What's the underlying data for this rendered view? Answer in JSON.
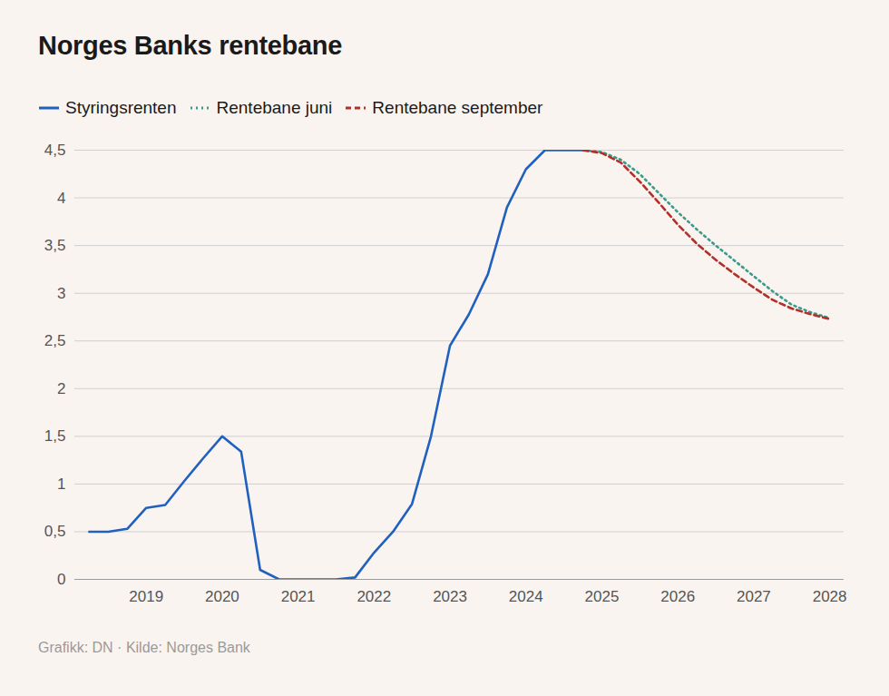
{
  "chart_data": {
    "type": "line",
    "title": "Norges Banks rentebane",
    "caption": "Grafikk: DN · Kilde: Norges Bank",
    "legend": "top-left",
    "grid": true,
    "x": [
      2018.25,
      2018.5,
      2018.75,
      2019,
      2019.25,
      2019.5,
      2019.75,
      2020,
      2020.25,
      2020.5,
      2020.75,
      2021,
      2021.25,
      2021.5,
      2021.75,
      2022,
      2022.25,
      2022.5,
      2022.75,
      2023,
      2023.25,
      2023.5,
      2023.75,
      2024,
      2024.25,
      2024.5,
      2024.75,
      2025,
      2025.25,
      2025.5,
      2025.75,
      2026,
      2026.25,
      2026.5,
      2026.75,
      2027,
      2027.25,
      2027.5,
      2027.75,
      2028
    ],
    "xlim": [
      2018.06,
      2028.19
    ],
    "xticks": [
      2019,
      2020,
      2021,
      2022,
      2023,
      2024,
      2025,
      2026,
      2027,
      2028
    ],
    "ylim": [
      0,
      4.5
    ],
    "yticks": [
      0,
      {
        "value": 0.5,
        "label": "0,5"
      },
      1,
      {
        "value": 1.5,
        "label": "1,5"
      },
      2,
      {
        "value": 2.5,
        "label": "2,5"
      },
      3,
      {
        "value": 3.5,
        "label": "3,5"
      },
      4,
      {
        "value": 4.5,
        "label": "4,5"
      }
    ],
    "series": [
      {
        "name": "Styringsrenten",
        "color": "#2060bf",
        "line_style": "solid",
        "values": [
          0.5,
          0.5,
          0.53,
          0.75,
          0.78,
          1.03,
          1.27,
          1.5,
          1.34,
          0.1,
          0,
          0,
          0,
          0,
          0.02,
          0.28,
          0.5,
          0.79,
          1.5,
          2.45,
          2.78,
          3.2,
          3.9,
          4.3,
          4.5,
          4.5,
          4.5,
          null,
          null,
          null,
          null,
          null,
          null,
          null,
          null,
          null,
          null,
          null,
          null,
          null
        ]
      },
      {
        "name": "Rentebane juni",
        "color": "#3a9a8c",
        "line_style": "dotted",
        "values": [
          null,
          null,
          null,
          null,
          null,
          null,
          null,
          null,
          null,
          null,
          null,
          null,
          null,
          null,
          null,
          null,
          null,
          null,
          null,
          null,
          null,
          null,
          null,
          null,
          null,
          null,
          4.5,
          4.48,
          4.4,
          4.25,
          4.05,
          3.85,
          3.67,
          3.5,
          3.34,
          3.18,
          3.02,
          2.88,
          2.8,
          2.74
        ]
      },
      {
        "name": "Rentebane september",
        "color": "#b3302a",
        "line_style": "dashed",
        "values": [
          null,
          null,
          null,
          null,
          null,
          null,
          null,
          null,
          null,
          null,
          null,
          null,
          null,
          null,
          null,
          null,
          null,
          null,
          null,
          null,
          null,
          null,
          null,
          null,
          null,
          null,
          4.5,
          4.47,
          4.37,
          4.17,
          3.95,
          3.72,
          3.52,
          3.35,
          3.2,
          3.06,
          2.93,
          2.84,
          2.78,
          2.73
        ]
      }
    ]
  }
}
